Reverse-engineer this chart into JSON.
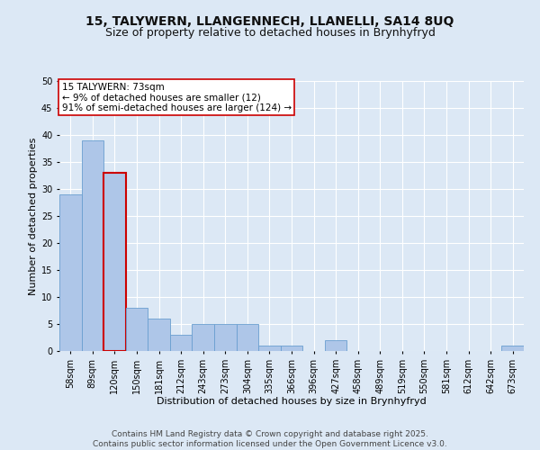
{
  "title_line1": "15, TALYWERN, LLANGENNECH, LLANELLI, SA14 8UQ",
  "title_line2": "Size of property relative to detached houses in Brynhyfryd",
  "xlabel": "Distribution of detached houses by size in Brynhyfryd",
  "ylabel": "Number of detached properties",
  "categories": [
    "58sqm",
    "89sqm",
    "120sqm",
    "150sqm",
    "181sqm",
    "212sqm",
    "243sqm",
    "273sqm",
    "304sqm",
    "335sqm",
    "366sqm",
    "396sqm",
    "427sqm",
    "458sqm",
    "489sqm",
    "519sqm",
    "550sqm",
    "581sqm",
    "612sqm",
    "642sqm",
    "673sqm"
  ],
  "values": [
    29,
    39,
    33,
    8,
    6,
    3,
    5,
    5,
    5,
    1,
    1,
    0,
    2,
    0,
    0,
    0,
    0,
    0,
    0,
    0,
    1
  ],
  "bar_color": "#aec6e8",
  "bar_edge_color": "#6a9fd0",
  "highlight_bar_index": 2,
  "highlight_edge_color": "#cc0000",
  "annotation_text": "15 TALYWERN: 73sqm\n← 9% of detached houses are smaller (12)\n91% of semi-detached houses are larger (124) →",
  "annotation_box_color": "#ffffff",
  "annotation_box_edge_color": "#cc0000",
  "ylim": [
    0,
    50
  ],
  "yticks": [
    0,
    5,
    10,
    15,
    20,
    25,
    30,
    35,
    40,
    45,
    50
  ],
  "background_color": "#dce8f5",
  "plot_bg_color": "#dce8f5",
  "grid_color": "#ffffff",
  "footer_text": "Contains HM Land Registry data © Crown copyright and database right 2025.\nContains public sector information licensed under the Open Government Licence v3.0.",
  "title_fontsize": 10,
  "subtitle_fontsize": 9,
  "axis_label_fontsize": 8,
  "tick_fontsize": 7,
  "annotation_fontsize": 7.5,
  "footer_fontsize": 6.5
}
